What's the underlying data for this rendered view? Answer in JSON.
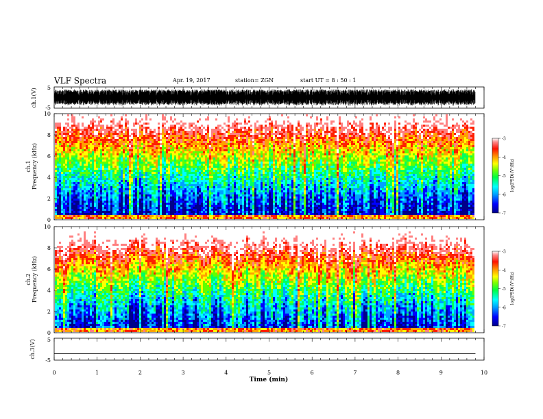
{
  "header": {
    "title": "VLF Spectra",
    "date": "Apr. 19, 2017",
    "station": "station= ZGN",
    "start": "start  UT =   8 : 50 : 1"
  },
  "chart_data": [
    {
      "type": "line",
      "panel": "ch1-waveform",
      "ylabel": "ch.1(V)",
      "ylim": [
        -5,
        5
      ],
      "y_ticks": [
        "5",
        "-5"
      ],
      "xlim": [
        0,
        10
      ],
      "data_end_min": 9.8,
      "description_of_signal": "dense noisy waveform spanning roughly -4 to +4 V"
    },
    {
      "type": "heatmap",
      "panel": "ch1-spectrogram",
      "ylabel": "ch.1\nFrequency (kHz)",
      "ylim": [
        0,
        10
      ],
      "y_ticks": [
        "0",
        "2",
        "4",
        "6",
        "8",
        "10"
      ],
      "xlim": [
        0,
        10
      ],
      "data_end_min": 9.8,
      "colorbar": {
        "label": "log(PSD)(V²/Hz)",
        "range": [
          -7,
          -3
        ],
        "ticks": [
          "-3",
          "-4",
          "-5",
          "-6",
          "-7"
        ]
      }
    },
    {
      "type": "heatmap",
      "panel": "ch2-spectrogram",
      "ylabel": "ch.2\nFrequency (kHz)",
      "ylim": [
        0,
        10
      ],
      "y_ticks": [
        "0",
        "2",
        "4",
        "6",
        "8",
        "10"
      ],
      "xlim": [
        0,
        10
      ],
      "data_end_min": 9.8,
      "colorbar": {
        "label": "log(PSD)(V²/Hz)",
        "range": [
          -7,
          -3
        ],
        "ticks": [
          "-3",
          "-4",
          "-5",
          "-6",
          "-7"
        ]
      }
    },
    {
      "type": "line",
      "panel": "ch3-waveform",
      "ylabel": "ch.3(V)",
      "ylim": [
        -5,
        5
      ],
      "y_ticks": [
        "5",
        "-5"
      ],
      "xlim": [
        0,
        10
      ],
      "data_end_min": 9.8,
      "x": [
        0,
        9.8
      ],
      "y": [
        -2,
        -2
      ]
    }
  ],
  "xaxis": {
    "label": "Time (min)",
    "ticks": [
      "0",
      "1",
      "2",
      "3",
      "4",
      "5",
      "6",
      "7",
      "8",
      "9",
      "10"
    ]
  },
  "colors": {
    "spectral": [
      "#00008a",
      "#0000ff",
      "#00a0ff",
      "#00ffff",
      "#00ff60",
      "#60ff00",
      "#ffff00",
      "#ffa000",
      "#ff2000",
      "#ff8080",
      "#ffffff"
    ]
  }
}
